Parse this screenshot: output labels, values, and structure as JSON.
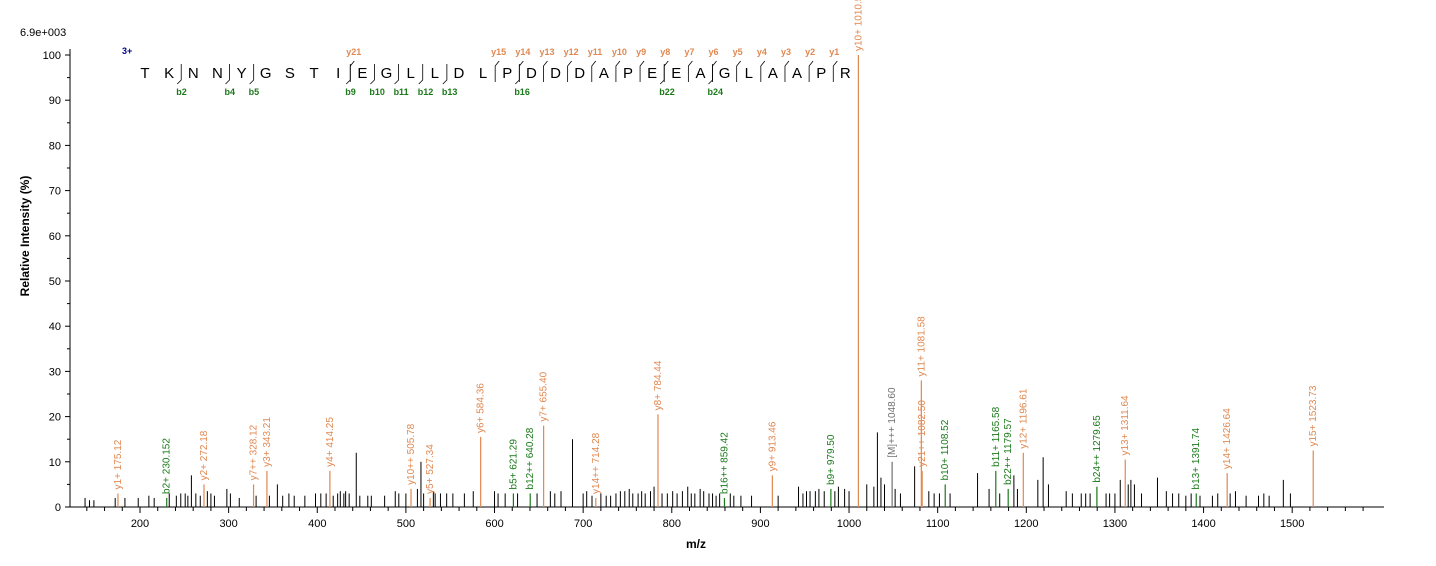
{
  "chart_data": {
    "type": "bar",
    "max_intensity_label": "6.9e+003",
    "xlabel": "m/z",
    "ylabel": "Relative   Intensity (%)",
    "xlim": [
      125,
      1600
    ],
    "ylim": [
      0,
      100
    ],
    "xticks": [
      200,
      300,
      400,
      500,
      600,
      700,
      800,
      900,
      1000,
      1100,
      1200,
      1300,
      1400,
      1500
    ],
    "yticks": [
      0,
      10,
      20,
      30,
      40,
      50,
      60,
      70,
      80,
      90,
      100
    ],
    "colors": {
      "y_ion": "#e08850",
      "b_ion": "#1a7a1a",
      "precursor": "#707070",
      "other": "#000000",
      "charge": "#00008b"
    },
    "peptide": {
      "charge": "3+",
      "sequence": [
        "T",
        "K",
        "N",
        "N",
        "Y",
        "G",
        "S",
        "T",
        "I",
        "E",
        "G",
        "L",
        "L",
        "D",
        "L",
        "P",
        "D",
        "D",
        "D",
        "A",
        "P",
        "E",
        "E",
        "A",
        "G",
        "L",
        "A",
        "A",
        "P",
        "R"
      ],
      "b_labels": [
        {
          "after": 1,
          "text": "b2"
        },
        {
          "after": 3,
          "text": "b4"
        },
        {
          "after": 4,
          "text": "b5"
        },
        {
          "after": 8,
          "text": "b9"
        },
        {
          "after": 9,
          "text": "b10"
        },
        {
          "after": 10,
          "text": "b11"
        },
        {
          "after": 11,
          "text": "b12"
        },
        {
          "after": 12,
          "text": "b13"
        },
        {
          "after": 15,
          "text": "b16"
        },
        {
          "after": 21,
          "text": "b22"
        },
        {
          "after": 23,
          "text": "b24"
        }
      ],
      "y_labels": [
        {
          "after": 8,
          "text": "y21"
        },
        {
          "after": 14,
          "text": "y15"
        },
        {
          "after": 15,
          "text": "y14"
        },
        {
          "after": 16,
          "text": "y13"
        },
        {
          "after": 17,
          "text": "y12"
        },
        {
          "after": 18,
          "text": "y11"
        },
        {
          "after": 19,
          "text": "y10"
        },
        {
          "after": 20,
          "text": "y9"
        },
        {
          "after": 21,
          "text": "y8"
        },
        {
          "after": 22,
          "text": "y7"
        },
        {
          "after": 23,
          "text": "y6"
        },
        {
          "after": 24,
          "text": "y5"
        },
        {
          "after": 25,
          "text": "y4"
        },
        {
          "after": 26,
          "text": "y3"
        },
        {
          "after": 27,
          "text": "y2"
        },
        {
          "after": 28,
          "text": "y1"
        }
      ]
    },
    "annotated_peaks": [
      {
        "mz": 175.12,
        "intensity": 3,
        "ion": "y",
        "label": "y1+ 175.12"
      },
      {
        "mz": 230.15,
        "intensity": 2,
        "ion": "b",
        "label": "b2+ 230.152"
      },
      {
        "mz": 272.18,
        "intensity": 5,
        "ion": "y",
        "label": "y2+ 272.18"
      },
      {
        "mz": 328.12,
        "intensity": 5,
        "ion": "y",
        "label": "y7++ 328.12"
      },
      {
        "mz": 343.21,
        "intensity": 8,
        "ion": "y",
        "label": "y3+ 343.21"
      },
      {
        "mz": 414.25,
        "intensity": 8,
        "ion": "y",
        "label": "y4+ 414.25"
      },
      {
        "mz": 505.78,
        "intensity": 4,
        "ion": "y",
        "label": "y10++ 505.78"
      },
      {
        "mz": 527.34,
        "intensity": 2,
        "ion": "y",
        "label": "y5+ 527.34"
      },
      {
        "mz": 584.36,
        "intensity": 15.5,
        "ion": "y",
        "label": "y6+ 584.36"
      },
      {
        "mz": 621.29,
        "intensity": 3,
        "ion": "b",
        "label": "b5+ 621.29"
      },
      {
        "mz": 640.28,
        "intensity": 3,
        "ion": "b",
        "label": "b12++ 640.28"
      },
      {
        "mz": 655.4,
        "intensity": 18,
        "ion": "y",
        "label": "y7+ 655.40"
      },
      {
        "mz": 714.28,
        "intensity": 2,
        "ion": "y",
        "label": "y14++ 714.28"
      },
      {
        "mz": 784.44,
        "intensity": 20.5,
        "ion": "y",
        "label": "y8+ 784.44"
      },
      {
        "mz": 859.42,
        "intensity": 2,
        "ion": "b",
        "label": "b16++ 859.42"
      },
      {
        "mz": 913.46,
        "intensity": 7,
        "ion": "y",
        "label": "y9+ 913.46"
      },
      {
        "mz": 979.5,
        "intensity": 4,
        "ion": "b",
        "label": "b9+ 979.50"
      },
      {
        "mz": 1010.54,
        "intensity": 100,
        "ion": "y",
        "label": "y10+ 1010.54"
      },
      {
        "mz": 1048.6,
        "intensity": 10,
        "ion": "p",
        "label": "[M]+++ 1048.60"
      },
      {
        "mz": 1081.58,
        "intensity": 28,
        "ion": "y",
        "label": "y11+ 1081.58"
      },
      {
        "mz": 1082.5,
        "intensity": 8,
        "ion": "y",
        "label": "y21++ 1082.50"
      },
      {
        "mz": 1108.52,
        "intensity": 5,
        "ion": "b",
        "label": "b10+ 1108.52"
      },
      {
        "mz": 1165.58,
        "intensity": 8,
        "ion": "b",
        "label": "b11+ 1165.58"
      },
      {
        "mz": 1179.57,
        "intensity": 4,
        "ion": "b",
        "label": "b22++ 1179.57"
      },
      {
        "mz": 1196.61,
        "intensity": 12,
        "ion": "y",
        "label": "y12+ 1196.61"
      },
      {
        "mz": 1279.65,
        "intensity": 4.5,
        "ion": "b",
        "label": "b24++ 1279.65"
      },
      {
        "mz": 1311.64,
        "intensity": 10.5,
        "ion": "y",
        "label": "y13+ 1311.64"
      },
      {
        "mz": 1391.74,
        "intensity": 3,
        "ion": "b",
        "label": "b13+ 1391.74"
      },
      {
        "mz": 1426.64,
        "intensity": 7.5,
        "ion": "y",
        "label": "y14+ 1426.64"
      },
      {
        "mz": 1523.73,
        "intensity": 12.5,
        "ion": "y",
        "label": "y15+ 1523.73"
      }
    ],
    "unannotated_peaks": [
      {
        "mz": 138,
        "intensity": 2
      },
      {
        "mz": 143,
        "intensity": 1.5
      },
      {
        "mz": 148,
        "intensity": 1.5
      },
      {
        "mz": 172,
        "intensity": 2
      },
      {
        "mz": 183,
        "intensity": 2
      },
      {
        "mz": 198,
        "intensity": 2
      },
      {
        "mz": 210,
        "intensity": 2.5
      },
      {
        "mz": 216,
        "intensity": 2
      },
      {
        "mz": 233,
        "intensity": 3
      },
      {
        "mz": 241,
        "intensity": 2.5
      },
      {
        "mz": 246,
        "intensity": 3
      },
      {
        "mz": 251,
        "intensity": 3
      },
      {
        "mz": 254,
        "intensity": 2.5
      },
      {
        "mz": 258,
        "intensity": 7
      },
      {
        "mz": 263,
        "intensity": 3
      },
      {
        "mz": 268,
        "intensity": 2.5
      },
      {
        "mz": 276,
        "intensity": 3.5
      },
      {
        "mz": 280,
        "intensity": 3
      },
      {
        "mz": 284,
        "intensity": 2.5
      },
      {
        "mz": 298,
        "intensity": 4
      },
      {
        "mz": 302,
        "intensity": 3
      },
      {
        "mz": 312,
        "intensity": 2
      },
      {
        "mz": 331,
        "intensity": 2.5
      },
      {
        "mz": 346,
        "intensity": 2.5
      },
      {
        "mz": 355,
        "intensity": 5
      },
      {
        "mz": 361,
        "intensity": 2.5
      },
      {
        "mz": 368,
        "intensity": 3
      },
      {
        "mz": 374,
        "intensity": 2.5
      },
      {
        "mz": 386,
        "intensity": 2.5
      },
      {
        "mz": 398,
        "intensity": 3
      },
      {
        "mz": 404,
        "intensity": 3
      },
      {
        "mz": 410,
        "intensity": 3
      },
      {
        "mz": 418,
        "intensity": 2.5
      },
      {
        "mz": 423,
        "intensity": 3
      },
      {
        "mz": 426,
        "intensity": 3.5
      },
      {
        "mz": 430,
        "intensity": 3
      },
      {
        "mz": 432,
        "intensity": 3.5
      },
      {
        "mz": 436,
        "intensity": 3
      },
      {
        "mz": 444,
        "intensity": 12
      },
      {
        "mz": 448,
        "intensity": 2.5
      },
      {
        "mz": 457,
        "intensity": 2.5
      },
      {
        "mz": 461,
        "intensity": 2.5
      },
      {
        "mz": 476,
        "intensity": 2.5
      },
      {
        "mz": 488,
        "intensity": 3.5
      },
      {
        "mz": 492,
        "intensity": 3
      },
      {
        "mz": 500,
        "intensity": 3
      },
      {
        "mz": 513,
        "intensity": 4
      },
      {
        "mz": 517,
        "intensity": 10
      },
      {
        "mz": 520,
        "intensity": 3
      },
      {
        "mz": 531,
        "intensity": 3.5
      },
      {
        "mz": 533,
        "intensity": 3
      },
      {
        "mz": 539,
        "intensity": 3
      },
      {
        "mz": 546,
        "intensity": 3
      },
      {
        "mz": 553,
        "intensity": 3
      },
      {
        "mz": 566,
        "intensity": 3
      },
      {
        "mz": 576,
        "intensity": 3.5
      },
      {
        "mz": 600,
        "intensity": 3.5
      },
      {
        "mz": 604,
        "intensity": 3
      },
      {
        "mz": 612,
        "intensity": 3
      },
      {
        "mz": 626,
        "intensity": 3
      },
      {
        "mz": 648,
        "intensity": 3
      },
      {
        "mz": 663,
        "intensity": 3.5
      },
      {
        "mz": 668,
        "intensity": 3
      },
      {
        "mz": 675,
        "intensity": 3.5
      },
      {
        "mz": 688,
        "intensity": 15
      },
      {
        "mz": 700,
        "intensity": 3
      },
      {
        "mz": 704,
        "intensity": 3.5
      },
      {
        "mz": 710,
        "intensity": 2.5
      },
      {
        "mz": 720,
        "intensity": 3
      },
      {
        "mz": 726,
        "intensity": 2.5
      },
      {
        "mz": 731,
        "intensity": 2.5
      },
      {
        "mz": 737,
        "intensity": 3
      },
      {
        "mz": 742,
        "intensity": 3.5
      },
      {
        "mz": 747,
        "intensity": 3.5
      },
      {
        "mz": 752,
        "intensity": 4
      },
      {
        "mz": 756,
        "intensity": 3
      },
      {
        "mz": 762,
        "intensity": 3
      },
      {
        "mz": 766,
        "intensity": 3.5
      },
      {
        "mz": 770,
        "intensity": 3
      },
      {
        "mz": 776,
        "intensity": 3.5
      },
      {
        "mz": 780,
        "intensity": 4.5
      },
      {
        "mz": 789,
        "intensity": 3
      },
      {
        "mz": 795,
        "intensity": 3
      },
      {
        "mz": 801,
        "intensity": 3.5
      },
      {
        "mz": 806,
        "intensity": 3
      },
      {
        "mz": 812,
        "intensity": 3.5
      },
      {
        "mz": 818,
        "intensity": 4.5
      },
      {
        "mz": 822,
        "intensity": 3
      },
      {
        "mz": 826,
        "intensity": 3
      },
      {
        "mz": 832,
        "intensity": 4
      },
      {
        "mz": 836,
        "intensity": 3.5
      },
      {
        "mz": 842,
        "intensity": 3
      },
      {
        "mz": 846,
        "intensity": 3
      },
      {
        "mz": 850,
        "intensity": 2.5
      },
      {
        "mz": 854,
        "intensity": 3
      },
      {
        "mz": 866,
        "intensity": 3
      },
      {
        "mz": 870,
        "intensity": 2.5
      },
      {
        "mz": 878,
        "intensity": 2.5
      },
      {
        "mz": 890,
        "intensity": 2.5
      },
      {
        "mz": 920,
        "intensity": 2.5
      },
      {
        "mz": 943,
        "intensity": 4.5
      },
      {
        "mz": 948,
        "intensity": 3
      },
      {
        "mz": 952,
        "intensity": 3.5
      },
      {
        "mz": 956,
        "intensity": 3.5
      },
      {
        "mz": 962,
        "intensity": 3.5
      },
      {
        "mz": 966,
        "intensity": 4
      },
      {
        "mz": 972,
        "intensity": 3.5
      },
      {
        "mz": 984,
        "intensity": 3.5
      },
      {
        "mz": 988,
        "intensity": 4.5
      },
      {
        "mz": 995,
        "intensity": 4
      },
      {
        "mz": 1000,
        "intensity": 3.5
      },
      {
        "mz": 1020,
        "intensity": 5
      },
      {
        "mz": 1028,
        "intensity": 4.5
      },
      {
        "mz": 1032,
        "intensity": 16.5
      },
      {
        "mz": 1036,
        "intensity": 6.5
      },
      {
        "mz": 1040,
        "intensity": 5
      },
      {
        "mz": 1052,
        "intensity": 4
      },
      {
        "mz": 1058,
        "intensity": 3
      },
      {
        "mz": 1074,
        "intensity": 9
      },
      {
        "mz": 1090,
        "intensity": 3.5
      },
      {
        "mz": 1096,
        "intensity": 3
      },
      {
        "mz": 1102,
        "intensity": 3
      },
      {
        "mz": 1114,
        "intensity": 3
      },
      {
        "mz": 1145,
        "intensity": 7.5
      },
      {
        "mz": 1158,
        "intensity": 4
      },
      {
        "mz": 1170,
        "intensity": 3
      },
      {
        "mz": 1186,
        "intensity": 7
      },
      {
        "mz": 1190,
        "intensity": 4
      },
      {
        "mz": 1213,
        "intensity": 6
      },
      {
        "mz": 1219,
        "intensity": 11
      },
      {
        "mz": 1225,
        "intensity": 5
      },
      {
        "mz": 1245,
        "intensity": 3.5
      },
      {
        "mz": 1252,
        "intensity": 3
      },
      {
        "mz": 1262,
        "intensity": 3
      },
      {
        "mz": 1267,
        "intensity": 3
      },
      {
        "mz": 1272,
        "intensity": 3
      },
      {
        "mz": 1290,
        "intensity": 3
      },
      {
        "mz": 1294,
        "intensity": 3
      },
      {
        "mz": 1300,
        "intensity": 3
      },
      {
        "mz": 1306,
        "intensity": 6
      },
      {
        "mz": 1315,
        "intensity": 5
      },
      {
        "mz": 1318,
        "intensity": 6
      },
      {
        "mz": 1322,
        "intensity": 5
      },
      {
        "mz": 1330,
        "intensity": 3
      },
      {
        "mz": 1348,
        "intensity": 6.5
      },
      {
        "mz": 1358,
        "intensity": 3.5
      },
      {
        "mz": 1365,
        "intensity": 3
      },
      {
        "mz": 1372,
        "intensity": 3
      },
      {
        "mz": 1380,
        "intensity": 2.5
      },
      {
        "mz": 1386,
        "intensity": 3
      },
      {
        "mz": 1396,
        "intensity": 2.5
      },
      {
        "mz": 1410,
        "intensity": 2.5
      },
      {
        "mz": 1416,
        "intensity": 3
      },
      {
        "mz": 1430,
        "intensity": 3
      },
      {
        "mz": 1436,
        "intensity": 3.5
      },
      {
        "mz": 1448,
        "intensity": 2.5
      },
      {
        "mz": 1462,
        "intensity": 2.5
      },
      {
        "mz": 1468,
        "intensity": 3
      },
      {
        "mz": 1474,
        "intensity": 2.5
      },
      {
        "mz": 1490,
        "intensity": 6
      },
      {
        "mz": 1498,
        "intensity": 3
      }
    ]
  }
}
